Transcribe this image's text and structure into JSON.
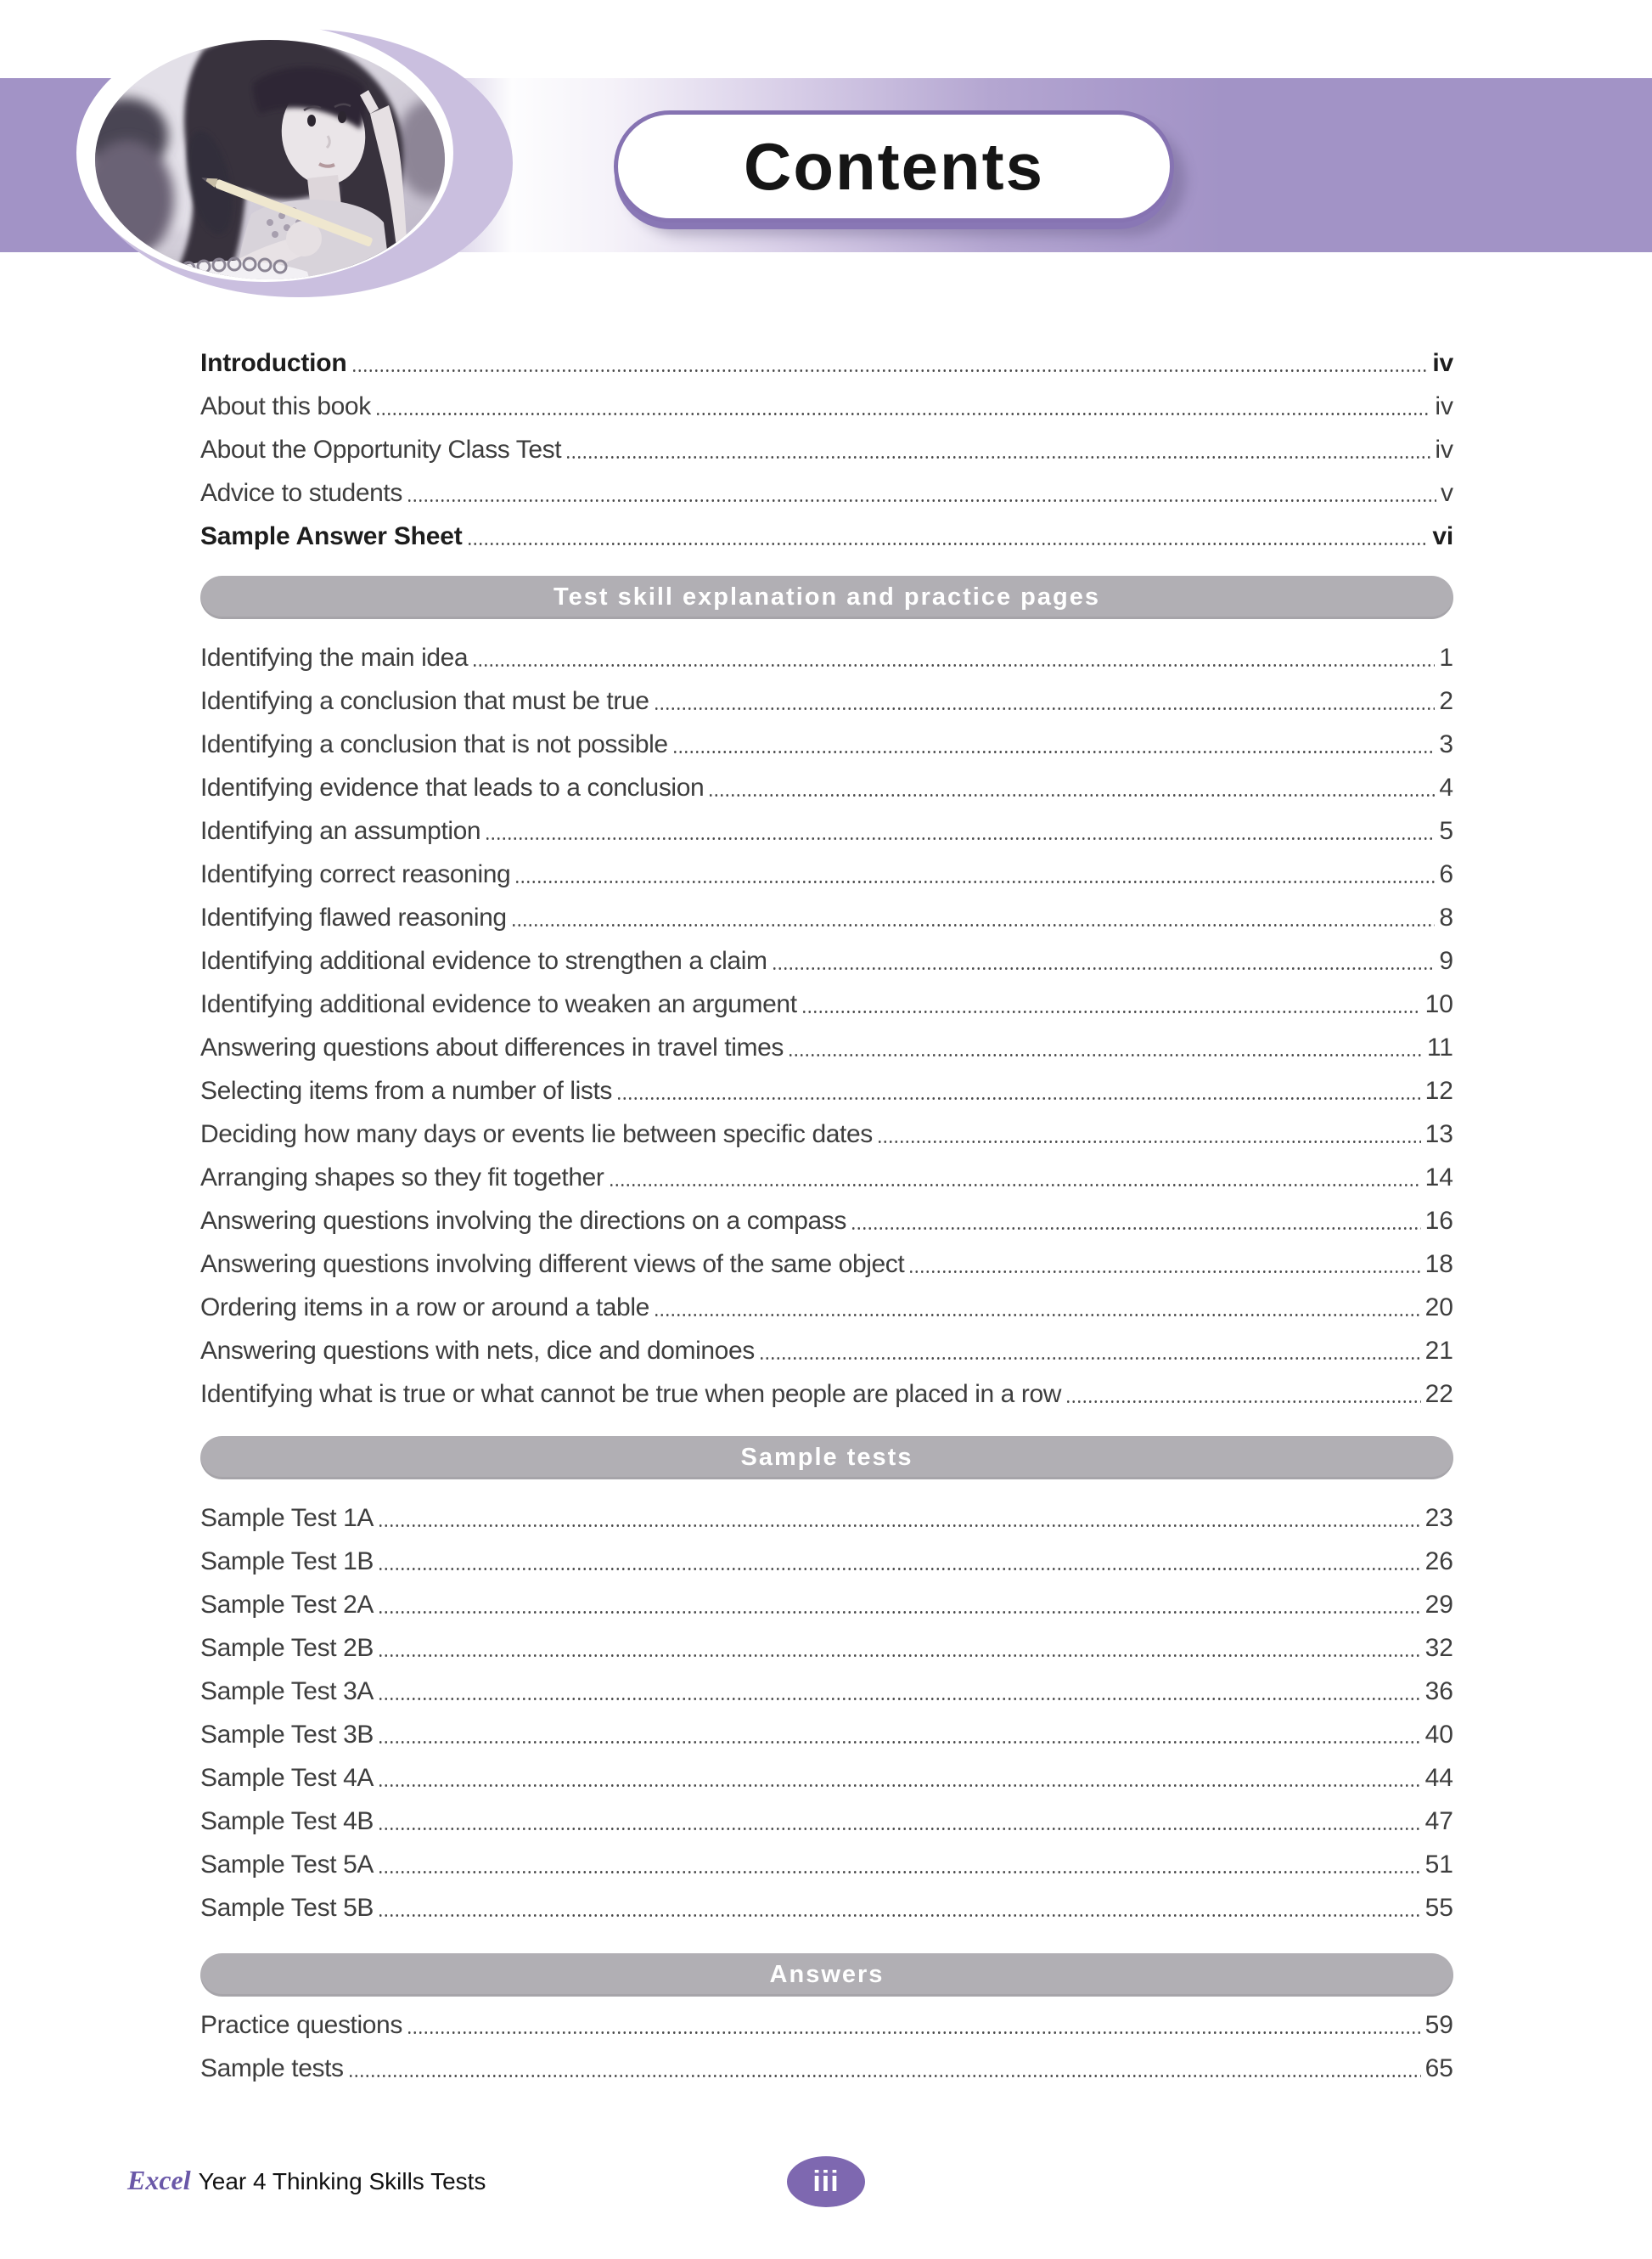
{
  "header": {
    "title": "Contents"
  },
  "intro_items": [
    {
      "label": "Introduction",
      "page": "iv",
      "bold": true
    },
    {
      "label": "About this book",
      "page": "iv",
      "bold": false
    },
    {
      "label": "About the Opportunity Class Test",
      "page": "iv",
      "bold": false
    },
    {
      "label": "Advice to students",
      "page": "v",
      "bold": false
    },
    {
      "label": "Sample Answer Sheet",
      "page": "vi",
      "bold": true
    }
  ],
  "sections": [
    {
      "banner": "Test skill explanation and practice pages",
      "items": [
        {
          "label": "Identifying the main idea",
          "page": "1"
        },
        {
          "label": "Identifying a conclusion that must be true",
          "page": "2"
        },
        {
          "label": "Identifying a conclusion that is not possible",
          "page": "3"
        },
        {
          "label": "Identifying evidence that leads to a conclusion",
          "page": "4"
        },
        {
          "label": "Identifying an assumption",
          "page": "5"
        },
        {
          "label": "Identifying correct reasoning",
          "page": "6"
        },
        {
          "label": "Identifying flawed reasoning",
          "page": "8"
        },
        {
          "label": "Identifying additional evidence to strengthen a claim",
          "page": "9"
        },
        {
          "label": "Identifying additional evidence to weaken an argument",
          "page": "10"
        },
        {
          "label": "Answering questions about differences in travel times",
          "page": "11"
        },
        {
          "label": "Selecting items from a number of lists",
          "page": "12"
        },
        {
          "label": "Deciding how many days or events lie between specific dates",
          "page": "13"
        },
        {
          "label": "Arranging shapes so they fit together",
          "page": "14"
        },
        {
          "label": "Answering questions involving the directions on a compass",
          "page": "16"
        },
        {
          "label": "Answering questions involving different views of the same object",
          "page": "18"
        },
        {
          "label": "Ordering items in a row or around a table",
          "page": "20"
        },
        {
          "label": "Answering questions with nets, dice and dominoes",
          "page": "21"
        },
        {
          "label": "Identifying what is true or what cannot be true when people are placed in a row",
          "page": "22"
        }
      ]
    },
    {
      "banner": "Sample tests",
      "items": [
        {
          "label": "Sample Test 1A",
          "page": "23"
        },
        {
          "label": "Sample Test 1B",
          "page": "26"
        },
        {
          "label": "Sample Test 2A",
          "page": "29"
        },
        {
          "label": "Sample Test 2B",
          "page": "32"
        },
        {
          "label": "Sample Test 3A",
          "page": "36"
        },
        {
          "label": "Sample Test 3B",
          "page": "40"
        },
        {
          "label": "Sample Test 4A",
          "page": "44"
        },
        {
          "label": "Sample Test 4B",
          "page": "47"
        },
        {
          "label": "Sample Test 5A",
          "page": "51"
        },
        {
          "label": "Sample Test 5B",
          "page": "55"
        }
      ]
    },
    {
      "banner": "Answers",
      "items": [
        {
          "label": "Practice questions",
          "page": "59"
        },
        {
          "label": "Sample tests",
          "page": "65"
        }
      ]
    }
  ],
  "footer": {
    "brand": "Excel",
    "series": "Year 4 Thinking Skills Tests",
    "page_badge": "iii"
  },
  "colors": {
    "band_purple": "#a293c6",
    "banner_gray": "#b1afb4",
    "pill_border": "#8673b2",
    "badge_purple": "#7e68b0",
    "brand_purple": "#6a58a8",
    "text": "#3e3e3e"
  }
}
